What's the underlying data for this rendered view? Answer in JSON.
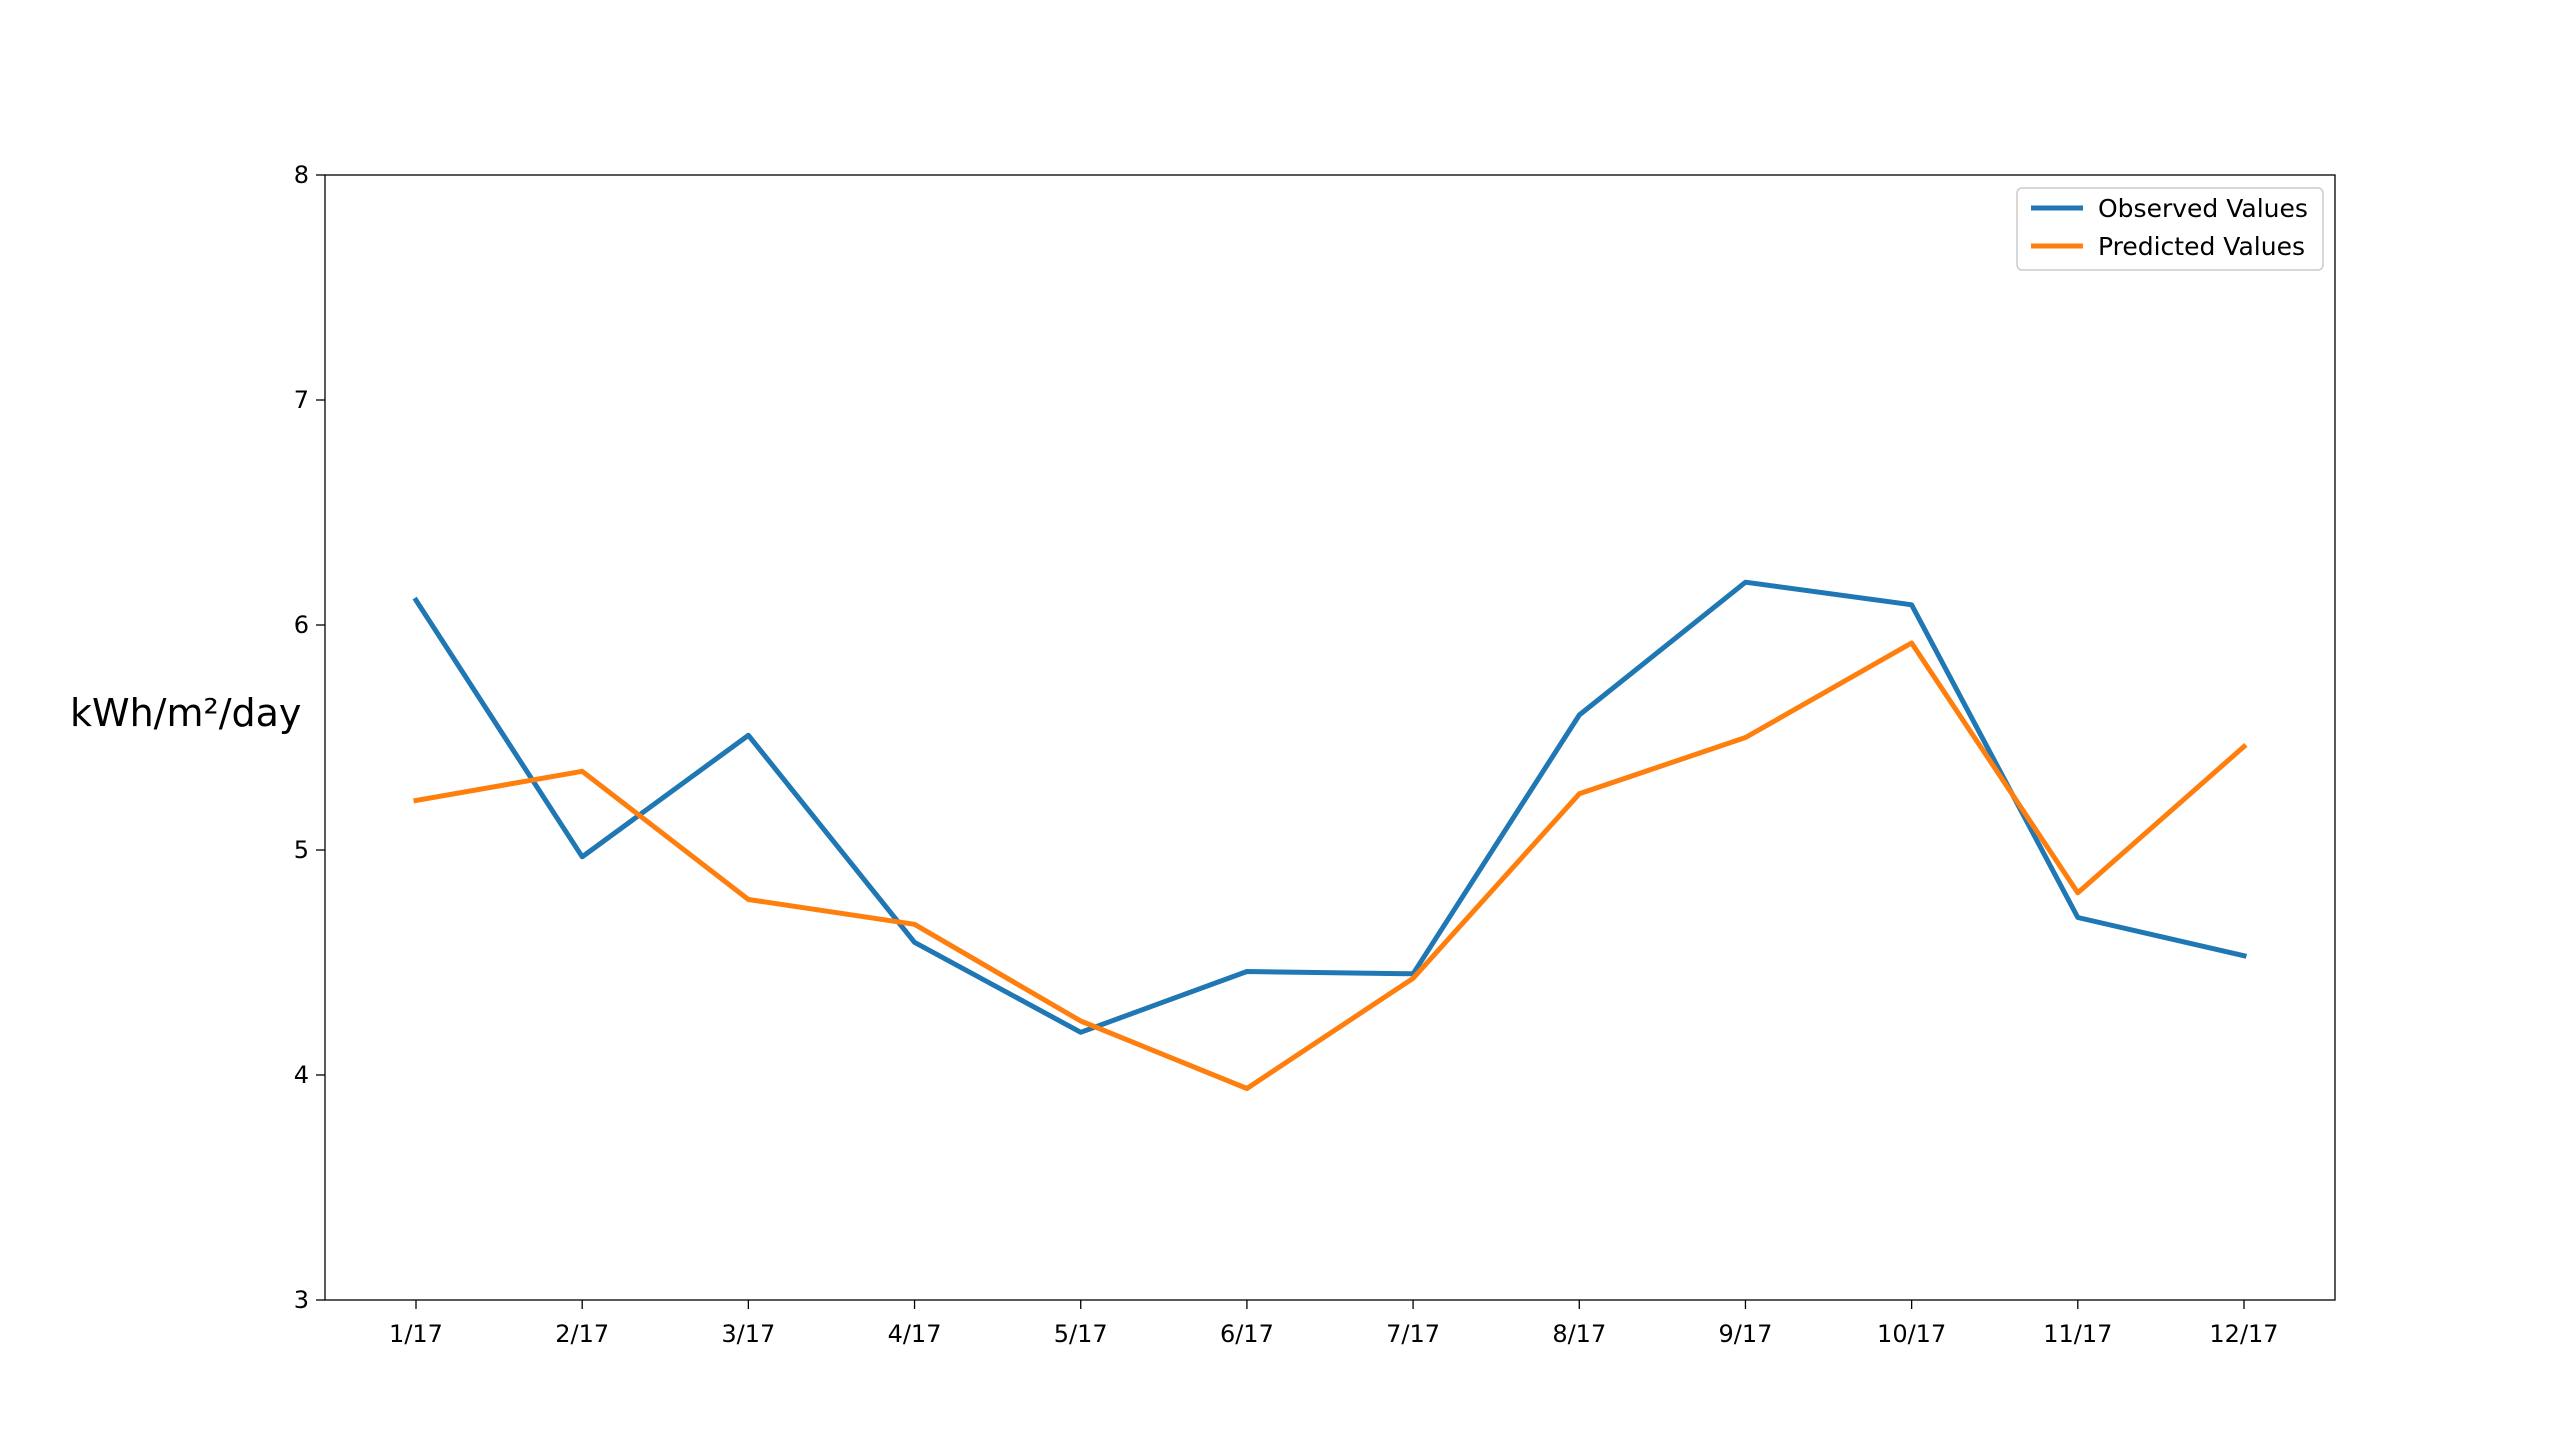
{
  "chart_data": {
    "type": "line",
    "categories": [
      "1/17",
      "2/17",
      "3/17",
      "4/17",
      "5/17",
      "6/17",
      "7/17",
      "8/17",
      "9/17",
      "10/17",
      "11/17",
      "12/17"
    ],
    "series": [
      {
        "name": "Observed Values",
        "color": "#1f77b4",
        "values": [
          6.11,
          4.97,
          5.51,
          4.59,
          4.19,
          4.46,
          4.45,
          5.6,
          6.19,
          6.09,
          4.7,
          4.53
        ]
      },
      {
        "name": "Predicted Values",
        "color": "#ff7f0e",
        "values": [
          5.22,
          5.35,
          4.78,
          4.67,
          4.24,
          3.94,
          4.43,
          5.25,
          5.5,
          5.92,
          4.81,
          5.46
        ]
      }
    ],
    "title": "",
    "xlabel": "",
    "ylabel": "kWh/m²/day",
    "ylim": [
      3,
      8
    ],
    "yticks": [
      "3",
      "4",
      "5",
      "6",
      "7",
      "8"
    ],
    "grid": false,
    "legend_position": "top-right"
  }
}
